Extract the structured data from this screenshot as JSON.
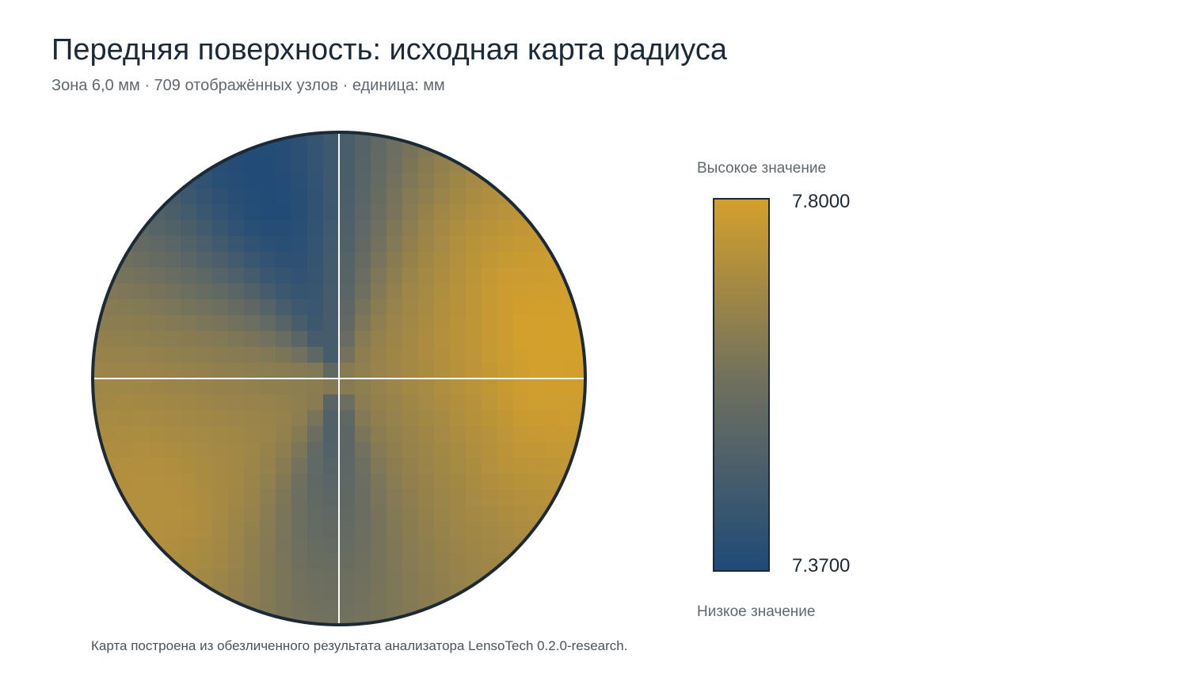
{
  "header": {
    "title": "Передняя поверхность: исходная карта радиуса",
    "subtitle": "Зона 6,0 мм · 709 отображённых узлов · единица: мм"
  },
  "legend": {
    "high_title": "Высокое значение",
    "low_title": "Низкое значение",
    "max_label": "7.8000",
    "min_label": "7.3700"
  },
  "footer": {
    "note": "Карта построена из обезличенного результата анализатора LensoTech 0.2.0-research."
  },
  "colors": {
    "low": "#1f4a78",
    "mid": "#6e6f5f",
    "high": "#d4a02c",
    "outline": "#1b2a36",
    "crosshair": "#ffffff"
  },
  "chart_data": {
    "type": "heatmap",
    "map": "polar corneal radius map",
    "zone_mm": 6.0,
    "node_count": 709,
    "unit": "мм",
    "value_range": [
      7.37,
      7.8
    ],
    "pattern": {
      "description": "low radius in two opposing lobes (upper-left toward center, lower-center), high radius toward right and lower-left periphery",
      "low_lobes_angle_deg": [
        110,
        265
      ],
      "high_lobes_angle_deg": [
        10,
        215
      ]
    },
    "samples": [
      {
        "location": "upper-left lobe",
        "value": 7.37
      },
      {
        "location": "lower-center lobe",
        "value": 7.48
      },
      {
        "location": "right periphery",
        "value": 7.8
      },
      {
        "location": "lower-left periphery",
        "value": 7.74
      }
    ]
  }
}
